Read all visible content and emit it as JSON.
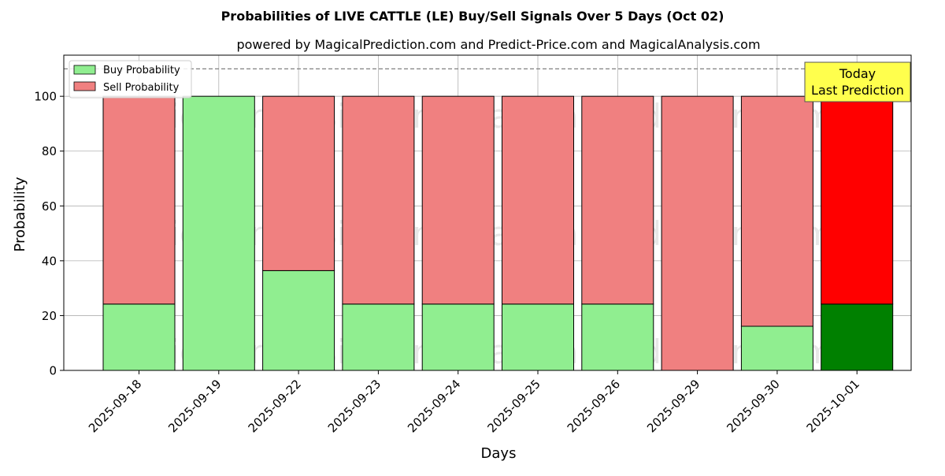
{
  "chart_data": {
    "type": "bar",
    "title": "Probabilities of LIVE CATTLE (LE) Buy/Sell Signals Over 5 Days (Oct 02)",
    "subtitle": "powered by MagicalPrediction.com and Predict-Price.com and MagicalAnalysis.com",
    "xlabel": "Days",
    "ylabel": "Probability",
    "ylim": [
      0,
      115
    ],
    "yticks": [
      0,
      20,
      40,
      60,
      80,
      100
    ],
    "grid": true,
    "stacked": true,
    "legend_position": "top-left",
    "reference_line": 110,
    "categories": [
      "2025-09-18",
      "2025-09-19",
      "2025-09-22",
      "2025-09-23",
      "2025-09-24",
      "2025-09-25",
      "2025-09-26",
      "2025-09-29",
      "2025-09-30",
      "2025-10-01"
    ],
    "series": [
      {
        "name": "Buy Probability",
        "color": "#90ee90",
        "values": [
          24.2,
          100,
          36.4,
          24.2,
          24.2,
          24.2,
          24.2,
          0,
          16.1,
          24.2
        ]
      },
      {
        "name": "Sell Probability",
        "color": "#f08080",
        "values": [
          75.8,
          0,
          63.6,
          75.8,
          75.8,
          75.8,
          75.8,
          100,
          83.9,
          75.8
        ]
      }
    ],
    "highlight": {
      "index": 9,
      "buy_color": "#008000",
      "sell_color": "#ff0000"
    },
    "annotation": {
      "line1": "Today",
      "line2": "Last Prediction",
      "bg_color": "#ffff4d"
    },
    "watermarks": [
      "MagicalAnalysis.com",
      "MagicalPrediction.com"
    ]
  }
}
